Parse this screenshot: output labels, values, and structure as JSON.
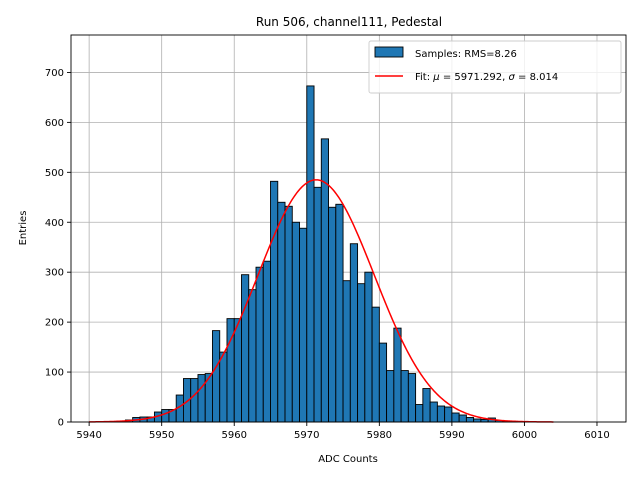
{
  "chart_data": {
    "type": "bar",
    "title": "Run 506, channel111, Pedestal",
    "xlabel": "ADC Counts",
    "ylabel": "Entries",
    "xlim": [
      5937.5,
      6014
    ],
    "ylim": [
      0,
      775
    ],
    "xticks": [
      5940,
      5950,
      5960,
      5970,
      5980,
      5990,
      6000,
      6010
    ],
    "yticks": [
      0,
      100,
      200,
      300,
      400,
      500,
      600,
      700
    ],
    "grid": true,
    "legend_position": "top-right",
    "histogram": {
      "name": "Samples: RMS=8.26",
      "bin_width": 1,
      "bin_start": 5943,
      "counts": [
        1,
        2,
        4,
        9,
        10,
        10,
        20,
        25,
        25,
        54,
        87,
        87,
        95,
        97,
        183,
        140,
        207,
        207,
        295,
        265,
        310,
        322,
        482,
        440,
        432,
        400,
        388,
        673,
        470,
        567,
        430,
        436,
        283,
        357,
        277,
        300,
        230,
        158,
        103,
        188,
        103,
        97,
        35,
        67,
        40,
        32,
        30,
        18,
        14,
        9,
        6,
        5,
        8,
        3,
        2,
        1
      ]
    },
    "fit": {
      "name_prefix": "Fit: ",
      "mu_symbol": "μ",
      "mu_value": "= 5971.292,",
      "sigma_symbol": "σ",
      "sigma_value": "= 8.014",
      "mu": 5971.292,
      "sigma": 8.014,
      "amplitude": 485,
      "x_range": [
        5940,
        6004
      ],
      "color": "#ff0000"
    },
    "bar_color": "#1f77b4"
  }
}
